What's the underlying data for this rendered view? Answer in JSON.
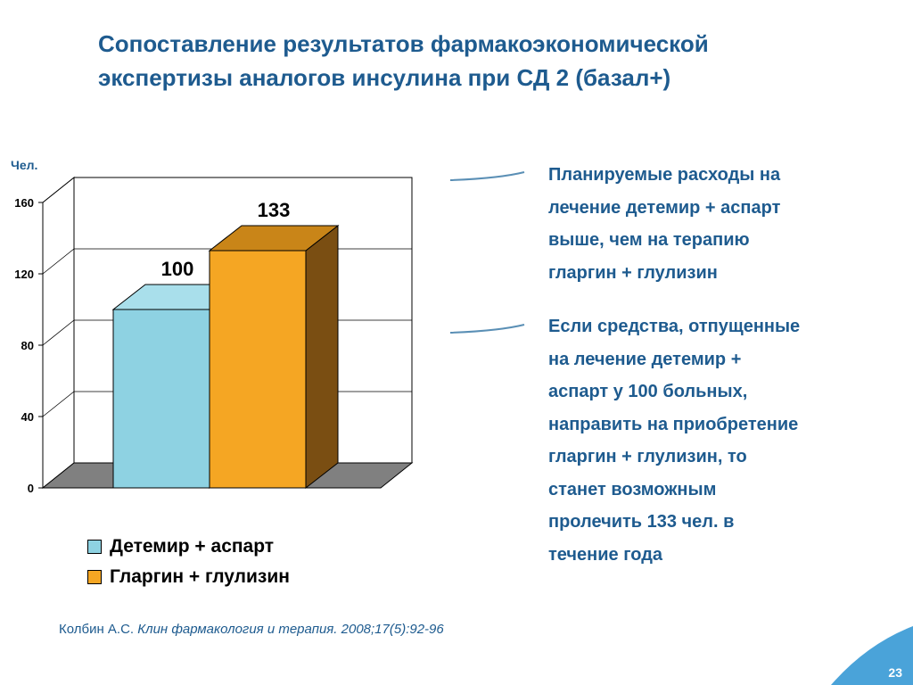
{
  "slide": {
    "title_lines": [
      "Сопоставление результатов фармакоэкономической",
      "экспертизы аналогов инсулина при СД 2 (базал+)"
    ],
    "bullets": [
      {
        "lines": [
          "Планируемые расходы на",
          "лечение детемир + аспарт",
          "выше, чем на терапию",
          "гларгин + глулизин"
        ]
      },
      {
        "lines": [
          "Если средства, отпущенные",
          "на лечение  детемир +",
          "аспарт у 100 больных,",
          "направить на приобретение",
          "гларгин + глулизин, то",
          "станет возможным",
          "пролечить 133 чел. в",
          "течение года"
        ]
      }
    ],
    "citation": {
      "author": "Колбин А.С.",
      "source": "Клин фармакология и терапия. 2008;17(5):92-96"
    },
    "page_number": "23"
  },
  "chart_data": {
    "type": "bar",
    "ylabel": "Чел.",
    "ylim": [
      0,
      160
    ],
    "yticks": [
      0,
      40,
      80,
      120,
      160
    ],
    "grid": true,
    "three_d": true,
    "legend_position": "bottom",
    "series": [
      {
        "name": "Детемир + аспарт",
        "value": 100,
        "label": "100",
        "color": "#8ed2e2",
        "side_color": "#6aaab9",
        "top_color": "#a9dfeb"
      },
      {
        "name": "Гларгин + глулизин",
        "value": 133,
        "label": "133",
        "color": "#f5a623",
        "side_color": "#7a4e12",
        "top_color": "#c98518"
      }
    ]
  },
  "colors": {
    "accent": "#1e5b8f",
    "floor": "#808080",
    "corner": "#4aa3d9"
  }
}
